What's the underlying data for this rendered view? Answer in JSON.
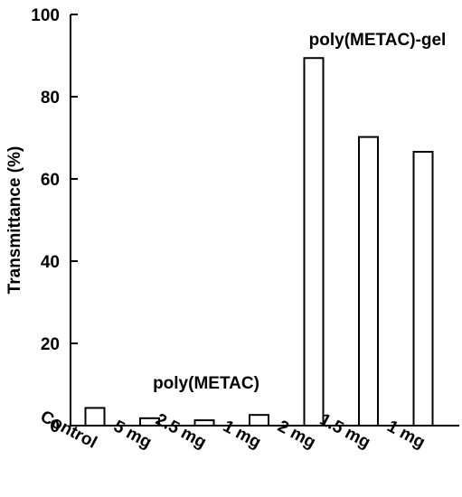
{
  "chart_data": {
    "type": "bar",
    "title": "",
    "xlabel": "",
    "ylabel": "Transmittance (%)",
    "ylim": [
      0,
      100
    ],
    "yticks": [
      0,
      20,
      40,
      60,
      80,
      100
    ],
    "categories": [
      "Control",
      "5 mg",
      "2.5 mg",
      "1 mg",
      "2 mg",
      "1.5 mg",
      "1 mg"
    ],
    "values": [
      4.3,
      1.8,
      1.3,
      2.6,
      89.4,
      70.2,
      66.6
    ],
    "grid": false,
    "bar_fill": "#ffffff",
    "bar_stroke": "#000000",
    "annotations": [
      {
        "text": "poly(METAC)",
        "covers": [
          "5 mg",
          "2.5 mg",
          "1 mg"
        ]
      },
      {
        "text": "poly(METAC)-gel",
        "covers": [
          "2 mg",
          "1.5 mg",
          "1 mg"
        ]
      }
    ]
  }
}
